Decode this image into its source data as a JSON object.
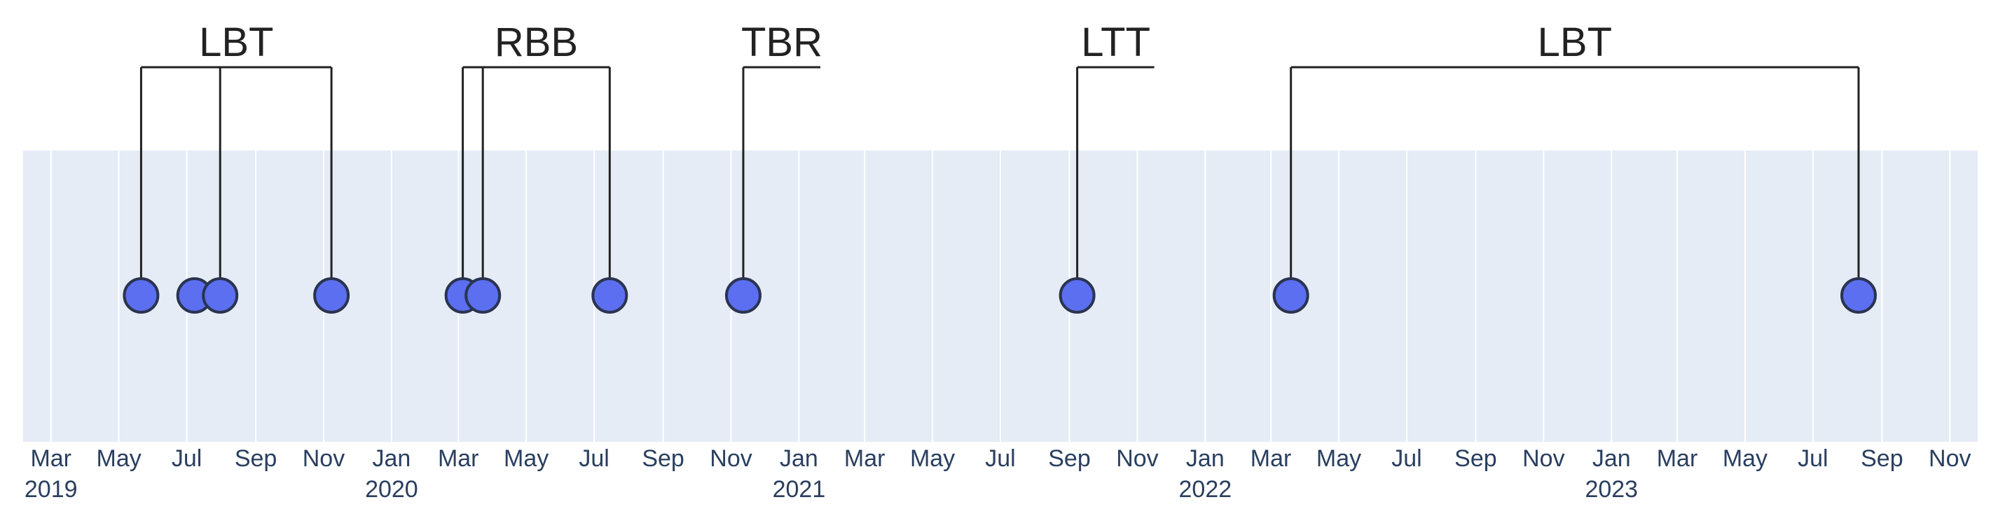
{
  "chart_data": {
    "type": "scatter",
    "x": [
      "2019-05-21",
      "2019-07-08",
      "2019-07-31",
      "2019-11-08",
      "2020-03-05",
      "2020-03-23",
      "2020-07-15",
      "2020-11-12",
      "2021-09-08",
      "2022-03-19",
      "2023-08-11"
    ],
    "marker_color": "#5b6ff0",
    "marker_line_color": "#2a3450",
    "plot_bgcolor": "#e5ecf6",
    "grid": true,
    "xlim": [
      "2019-02-04",
      "2023-11-26"
    ],
    "xticks": [
      {
        "value": "2019-03-01",
        "label": "Mar 2019"
      },
      {
        "value": "2019-05-01",
        "label": "May"
      },
      {
        "value": "2019-07-01",
        "label": "Jul"
      },
      {
        "value": "2019-09-01",
        "label": "Sep"
      },
      {
        "value": "2019-11-01",
        "label": "Nov"
      },
      {
        "value": "2020-01-01",
        "label": "Jan 2020"
      },
      {
        "value": "2020-03-01",
        "label": "Mar"
      },
      {
        "value": "2020-05-01",
        "label": "May"
      },
      {
        "value": "2020-07-01",
        "label": "Jul"
      },
      {
        "value": "2020-09-01",
        "label": "Sep"
      },
      {
        "value": "2020-11-01",
        "label": "Nov"
      },
      {
        "value": "2021-01-01",
        "label": "Jan 2021"
      },
      {
        "value": "2021-03-01",
        "label": "Mar"
      },
      {
        "value": "2021-05-01",
        "label": "May"
      },
      {
        "value": "2021-07-01",
        "label": "Jul"
      },
      {
        "value": "2021-09-01",
        "label": "Sep"
      },
      {
        "value": "2021-11-01",
        "label": "Nov"
      },
      {
        "value": "2022-01-01",
        "label": "Jan 2022"
      },
      {
        "value": "2022-03-01",
        "label": "Mar"
      },
      {
        "value": "2022-05-01",
        "label": "May"
      },
      {
        "value": "2022-07-01",
        "label": "Jul"
      },
      {
        "value": "2022-09-01",
        "label": "Sep"
      },
      {
        "value": "2022-11-01",
        "label": "Nov"
      },
      {
        "value": "2023-01-01",
        "label": "Jan 2023"
      },
      {
        "value": "2023-03-01",
        "label": "Mar"
      },
      {
        "value": "2023-05-01",
        "label": "May"
      },
      {
        "value": "2023-07-01",
        "label": "Jul"
      },
      {
        "value": "2023-09-01",
        "label": "Sep"
      },
      {
        "value": "2023-11-01",
        "label": "Nov"
      }
    ],
    "annotations": [
      {
        "text": "LBT",
        "x": [
          "2019-05-21",
          "2019-07-31",
          "2019-11-08"
        ]
      },
      {
        "text": "RBB",
        "x": [
          "2020-03-05",
          "2020-03-23",
          "2020-07-15"
        ]
      },
      {
        "text": "TBR",
        "x": [
          "2020-11-12"
        ]
      },
      {
        "text": "LTT",
        "x": [
          "2021-09-08"
        ]
      },
      {
        "text": "LBT",
        "x": [
          "2022-03-19",
          "2023-08-11"
        ]
      }
    ]
  }
}
